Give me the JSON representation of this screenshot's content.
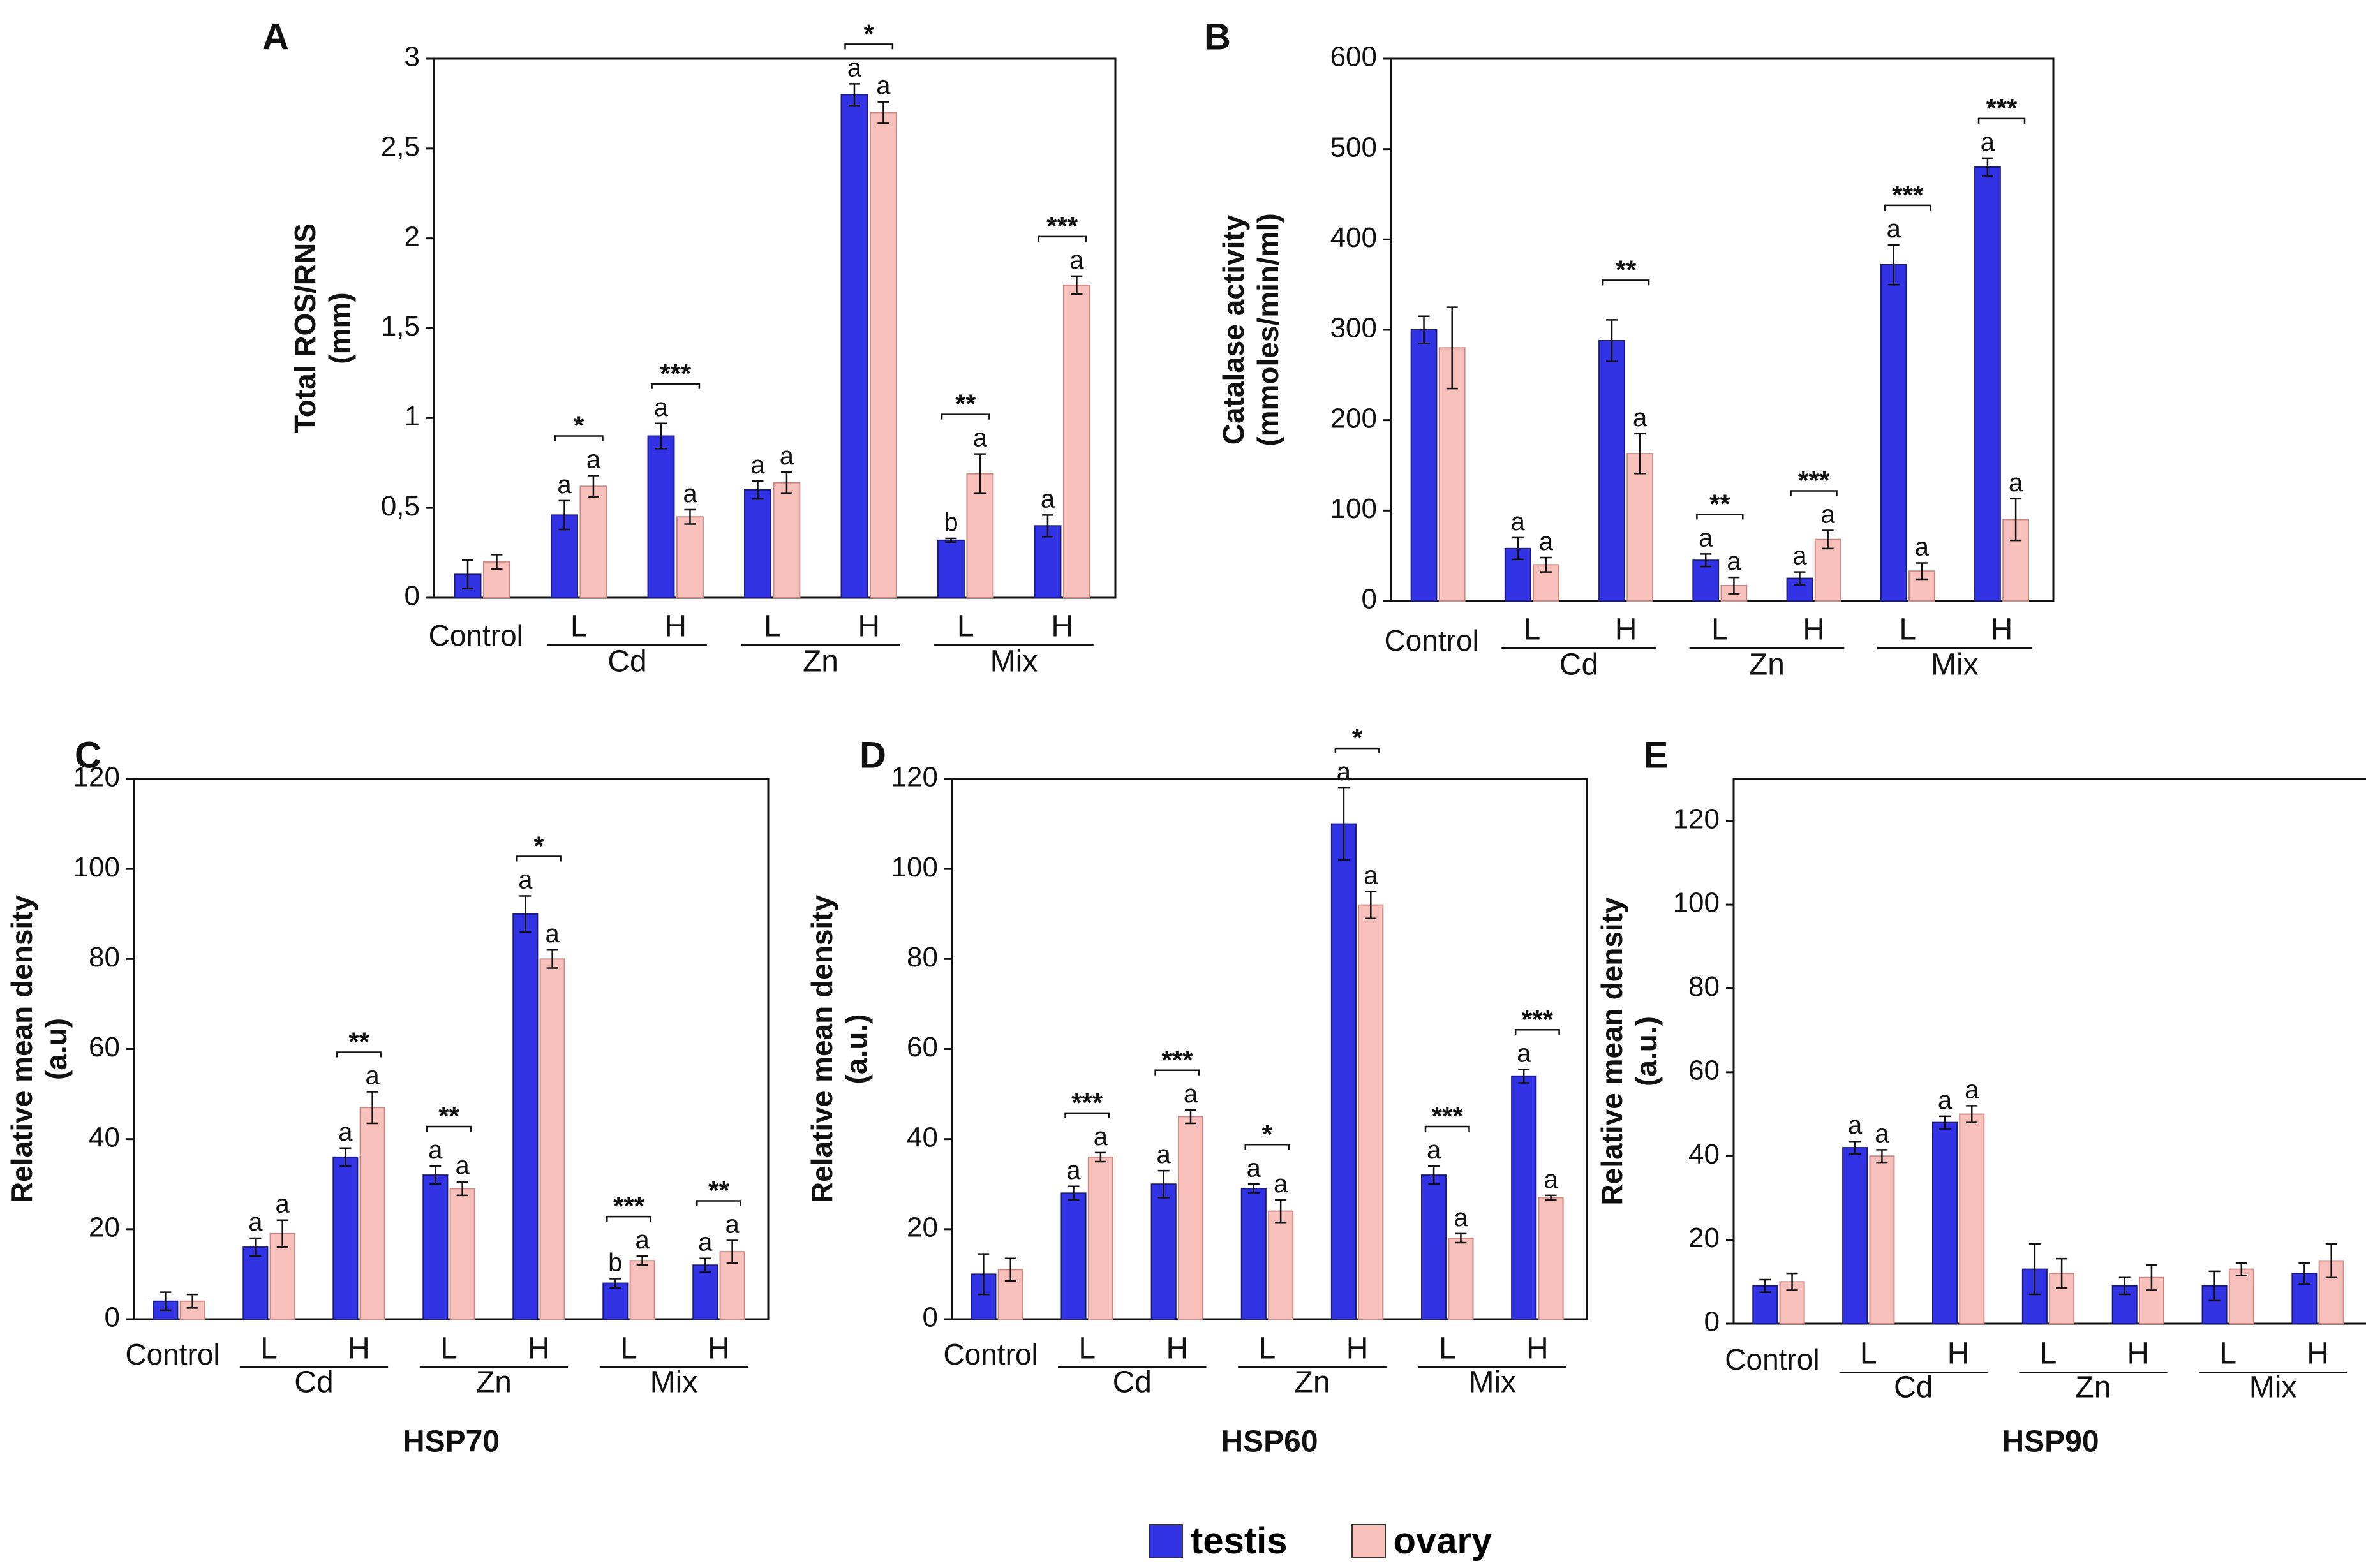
{
  "legend": {
    "series": [
      {
        "key": "testis",
        "label": "testis",
        "color": "#3333e6"
      },
      {
        "key": "ovary",
        "label": "ovary",
        "color": "#f7c0bb"
      }
    ]
  },
  "chart_data": [
    {
      "id": "A",
      "type": "bar",
      "panel_letter": "A",
      "ylabel": [
        "Total ROS/RNS",
        "(mm)"
      ],
      "title": "",
      "ylim": [
        0,
        3
      ],
      "yticks": [
        "0",
        "0,5",
        "1",
        "1,5",
        "2",
        "2,5",
        "3"
      ],
      "categories": [
        "Control",
        "Cd L",
        "Cd H",
        "Zn L",
        "Zn H",
        "Mix L",
        "Mix H"
      ],
      "level_labels": [
        "L",
        "H",
        "L",
        "H",
        "L",
        "H"
      ],
      "control_label": "Control",
      "group_labels": [
        "Cd",
        "Zn",
        "Mix"
      ],
      "series": [
        {
          "name": "testis",
          "values": [
            0.13,
            0.46,
            0.9,
            0.6,
            2.8,
            0.32,
            0.4
          ],
          "errors": [
            0.08,
            0.08,
            0.07,
            0.05,
            0.06,
            0.01,
            0.06
          ],
          "letters": [
            "",
            "a",
            "a",
            "a",
            "a",
            "b",
            "a"
          ]
        },
        {
          "name": "ovary",
          "values": [
            0.2,
            0.62,
            0.45,
            0.64,
            2.7,
            0.69,
            1.74
          ],
          "errors": [
            0.04,
            0.06,
            0.04,
            0.06,
            0.06,
            0.11,
            0.05
          ],
          "letters": [
            "",
            "a",
            "a",
            "a",
            "a",
            "a",
            "a"
          ]
        }
      ],
      "significance": [
        "",
        "*",
        "***",
        "",
        "*",
        "**",
        "***"
      ]
    },
    {
      "id": "B",
      "type": "bar",
      "panel_letter": "B",
      "ylabel": [
        "Catalase activity",
        "(mmoles/min/ml)"
      ],
      "title": "",
      "ylim": [
        0,
        600
      ],
      "yticks": [
        "0",
        "100",
        "200",
        "300",
        "400",
        "500",
        "600"
      ],
      "categories": [
        "Control",
        "Cd L",
        "Cd H",
        "Zn L",
        "Zn H",
        "Mix L",
        "Mix H"
      ],
      "level_labels": [
        "L",
        "H",
        "L",
        "H",
        "L",
        "H"
      ],
      "control_label": "Control",
      "group_labels": [
        "Cd",
        "Zn",
        "Mix"
      ],
      "series": [
        {
          "name": "testis",
          "values": [
            300,
            58,
            288,
            45,
            25,
            372,
            480
          ],
          "errors": [
            15,
            12,
            23,
            7,
            7,
            22,
            10
          ],
          "letters": [
            "",
            "a",
            "",
            "a",
            "a",
            "a",
            "a"
          ]
        },
        {
          "name": "ovary",
          "values": [
            280,
            40,
            163,
            17,
            68,
            33,
            90
          ],
          "errors": [
            45,
            8,
            22,
            9,
            10,
            9,
            23
          ],
          "letters": [
            "",
            "a",
            "a",
            "a",
            "a",
            "a",
            "a"
          ]
        }
      ],
      "significance": [
        "",
        "",
        "**",
        "**",
        "***",
        "***",
        "***"
      ]
    },
    {
      "id": "C",
      "type": "bar",
      "panel_letter": "C",
      "ylabel": [
        "Relative mean density",
        "(a.u)"
      ],
      "title": "HSP70",
      "ylim": [
        0,
        120
      ],
      "yticks": [
        "0",
        "20",
        "40",
        "60",
        "80",
        "100",
        "120"
      ],
      "categories": [
        "Control",
        "Cd L",
        "Cd H",
        "Zn L",
        "Zn H",
        "Mix L",
        "Mix H"
      ],
      "level_labels": [
        "L",
        "H",
        "L",
        "H",
        "L",
        "H"
      ],
      "control_label": "Control",
      "group_labels": [
        "Cd",
        "Zn",
        "Mix"
      ],
      "series": [
        {
          "name": "testis",
          "values": [
            4,
            16,
            36,
            32,
            90,
            8,
            12
          ],
          "errors": [
            2,
            2,
            2,
            2,
            4,
            1,
            1.5
          ],
          "letters": [
            "",
            "a",
            "a",
            "a",
            "a",
            "b",
            "a"
          ]
        },
        {
          "name": "ovary",
          "values": [
            4,
            19,
            47,
            29,
            80,
            13,
            15
          ],
          "errors": [
            1.5,
            3,
            3.5,
            1.5,
            2,
            1,
            2.5
          ],
          "letters": [
            "",
            "a",
            "a",
            "a",
            "a",
            "a",
            "a"
          ]
        }
      ],
      "significance": [
        "",
        "",
        "**",
        "**",
        "*",
        "***",
        "**"
      ]
    },
    {
      "id": "D",
      "type": "bar",
      "panel_letter": "D",
      "ylabel": [
        "Relative mean density",
        "(a.u.)"
      ],
      "title": "HSP60",
      "ylim": [
        0,
        120
      ],
      "yticks": [
        "0",
        "20",
        "40",
        "60",
        "80",
        "100",
        "120"
      ],
      "categories": [
        "Control",
        "Cd L",
        "Cd H",
        "Zn L",
        "Zn H",
        "Mix L",
        "Mix H"
      ],
      "level_labels": [
        "L",
        "H",
        "L",
        "H",
        "L",
        "H"
      ],
      "control_label": "Control",
      "group_labels": [
        "Cd",
        "Zn",
        "Mix"
      ],
      "series": [
        {
          "name": "testis",
          "values": [
            10,
            28,
            30,
            29,
            110,
            32,
            54
          ],
          "errors": [
            4.5,
            1.5,
            3,
            1,
            8,
            2,
            1.5
          ],
          "letters": [
            "",
            "a",
            "a",
            "a",
            "a",
            "a",
            "a"
          ]
        },
        {
          "name": "ovary",
          "values": [
            11,
            36,
            45,
            24,
            92,
            18,
            27
          ],
          "errors": [
            2.5,
            1,
            1.5,
            2.5,
            3,
            1,
            0.5
          ],
          "letters": [
            "",
            "a",
            "a",
            "a",
            "a",
            "a",
            "a"
          ]
        }
      ],
      "significance": [
        "",
        "***",
        "***",
        "*",
        "*",
        "***",
        "***"
      ]
    },
    {
      "id": "E",
      "type": "bar",
      "panel_letter": "E",
      "ylabel": [
        "Relative mean density",
        "(a.u.)"
      ],
      "title": "HSP90",
      "ylim": [
        0,
        130
      ],
      "yticks": [
        "0",
        "20",
        "40",
        "60",
        "80",
        "100",
        "120"
      ],
      "categories": [
        "Control",
        "Cd L",
        "Cd H",
        "Zn L",
        "Zn H",
        "Mix L",
        "Mix H"
      ],
      "level_labels": [
        "L",
        "H",
        "L",
        "H",
        "L",
        "H"
      ],
      "control_label": "Control",
      "group_labels": [
        "Cd",
        "Zn",
        "Mix"
      ],
      "series": [
        {
          "name": "testis",
          "values": [
            9,
            42,
            48,
            13,
            9,
            9,
            12
          ],
          "errors": [
            1.5,
            1.5,
            1.5,
            6,
            2,
            3.5,
            2.5
          ],
          "letters": [
            "",
            "a",
            "a",
            "",
            "",
            "",
            ""
          ]
        },
        {
          "name": "ovary",
          "values": [
            10,
            40,
            50,
            12,
            11,
            13,
            15
          ],
          "errors": [
            2,
            1.5,
            2,
            3.5,
            3,
            1.5,
            4
          ],
          "letters": [
            "",
            "a",
            "a",
            "",
            "",
            "",
            ""
          ]
        }
      ],
      "significance": [
        "",
        "",
        "",
        "",
        "",
        "",
        ""
      ]
    }
  ]
}
